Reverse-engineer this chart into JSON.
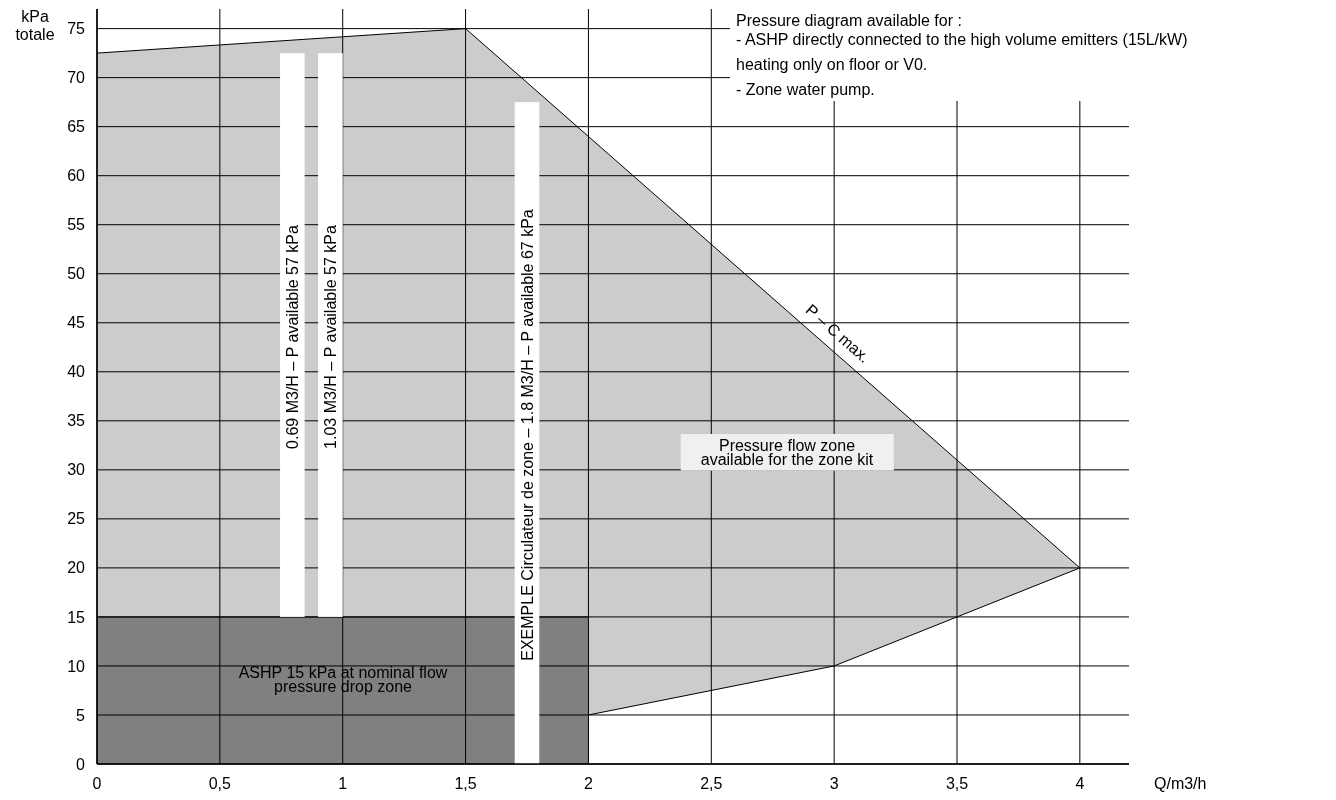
{
  "chart_data": {
    "type": "area",
    "xlabel": "Q/m3/h",
    "ylabel": "kPa\ntotale",
    "xlim": [
      0,
      4.2
    ],
    "ylim": [
      0,
      77
    ],
    "xticks": [
      0,
      {
        "value": 0.5,
        "label": "0,5"
      },
      1,
      {
        "value": 1.5,
        "label": "1,5"
      },
      2,
      {
        "value": 2.5,
        "label": "2,5"
      },
      3,
      {
        "value": 3.5,
        "label": "3,5"
      },
      4
    ],
    "yticks": [
      0,
      5,
      10,
      15,
      20,
      25,
      30,
      35,
      40,
      45,
      50,
      55,
      60,
      65,
      70,
      75
    ],
    "grid": true,
    "series": [
      {
        "color": "#cccccc",
        "x": [
          0,
          1.5,
          2,
          3,
          4
        ],
        "values": [
          72.5,
          75,
          64,
          42,
          20
        ]
      },
      {
        "color": "#ffffff",
        "x": [
          2,
          3,
          4
        ],
        "values": [
          5,
          10,
          20
        ]
      },
      {
        "color": "#808080",
        "x": [
          0,
          2
        ],
        "values": [
          15,
          15
        ]
      },
      {
        "type": "bar",
        "color": "#ffffff",
        "x": [
          0.795,
          0.95,
          1.75
        ],
        "base": [
          15,
          15,
          0
        ],
        "values": [
          57.5,
          57.5,
          67.5
        ]
      }
    ],
    "annotations": [
      "0.69 M3/H – P available 57 kPa",
      "1.03 M3/H – P available 57 kPa",
      "EXEMPLE Circulateur de zone – 1.8 M3/H – P available 67 kPa",
      "ASHP 15 kPa at nominal flow\npressure drop zone",
      "Pressure flow zone\navailable for the zone kit",
      {
        "text": "P – C max.",
        "x": 2.95,
        "y": 43.1
      },
      "Pressure diagram available for :\n-  ASHP directly connected to the high volume emitters (15L/kW)\nheating only on floor or V0.\n- Zone water pump."
    ]
  }
}
